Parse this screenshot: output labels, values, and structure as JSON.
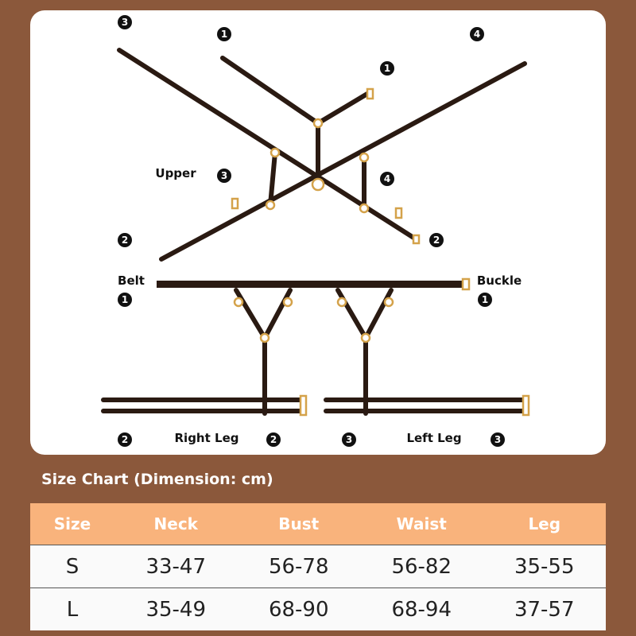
{
  "diagram": {
    "labels": {
      "upper": "Upper",
      "belt": "Belt",
      "buckle": "Buckle",
      "right_leg": "Right Leg",
      "left_leg": "Left Leg"
    },
    "markers": [
      "3",
      "1",
      "4",
      "1",
      "3",
      "4",
      "2",
      "2",
      "1",
      "1",
      "2",
      "2",
      "3",
      "3"
    ]
  },
  "size_chart": {
    "title": "Size Chart (Dimension: cm)",
    "headers": [
      "Size",
      "Neck",
      "Bust",
      "Waist",
      "Leg"
    ],
    "rows": [
      [
        "S",
        "33-47",
        "56-78",
        "56-82",
        "35-55"
      ],
      [
        "L",
        "35-49",
        "68-90",
        "68-94",
        "37-57"
      ]
    ]
  },
  "colors": {
    "background": "#8b583b",
    "header": "#f9b37c",
    "strap": "#2a1a12",
    "hardware": "#d4a24a"
  }
}
